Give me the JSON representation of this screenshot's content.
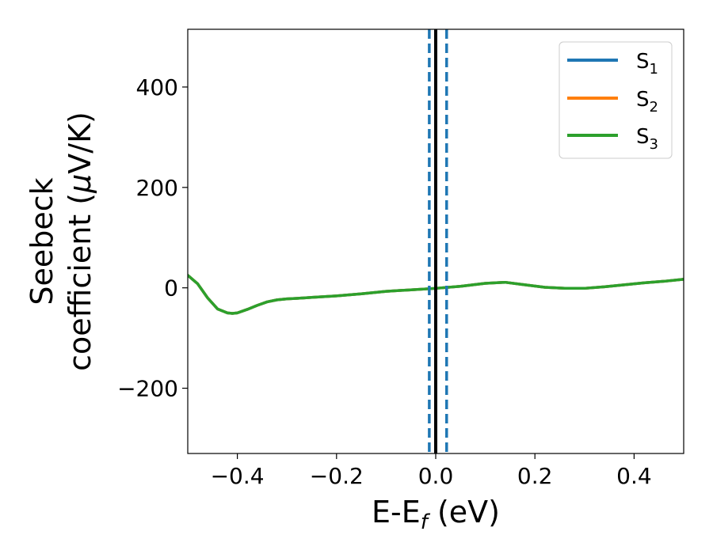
{
  "chart_data": {
    "type": "line",
    "xlabel": {
      "main": "E-E",
      "sub": "f",
      "unit": " (eV)"
    },
    "ylabel": {
      "line1": "Seebeck",
      "line2_prefix": "coefficient  (",
      "mu": "μ",
      "line2_suffix": "V/K)"
    },
    "xlim": [
      -0.5,
      0.5
    ],
    "ylim": [
      -330,
      515
    ],
    "xticks": [
      -0.4,
      -0.2,
      0.0,
      0.2,
      0.4
    ],
    "xtick_labels": [
      "−0.4",
      "−0.2",
      "0.0",
      "0.2",
      "0.4"
    ],
    "yticks": [
      -200,
      0,
      200,
      400
    ],
    "ytick_labels": [
      "−200",
      "0",
      "200",
      "400"
    ],
    "grid": false,
    "legend_position": "top-right",
    "series": [
      {
        "name": "S",
        "sub": "1",
        "color": "#1f77b4",
        "x": [
          -0.5,
          -0.48,
          -0.46,
          -0.44,
          -0.42,
          -0.41,
          -0.4,
          -0.38,
          -0.36,
          -0.34,
          -0.32,
          -0.3,
          -0.28,
          -0.25,
          -0.2,
          -0.15,
          -0.1,
          -0.05,
          0.0,
          0.05,
          0.1,
          0.14,
          0.18,
          0.22,
          0.26,
          0.3,
          0.34,
          0.38,
          0.42,
          0.46,
          0.5
        ],
        "y": [
          25,
          8,
          -20,
          -42,
          -50,
          -51,
          -50,
          -43,
          -35,
          -28,
          -24,
          -22,
          -21,
          -19,
          -16,
          -12,
          -7,
          -4,
          -1,
          3,
          9,
          11,
          6,
          1,
          -1,
          -1,
          2,
          6,
          10,
          13,
          17
        ]
      },
      {
        "name": "S",
        "sub": "2",
        "color": "#ff7f0e",
        "x": [
          -0.5,
          -0.48,
          -0.46,
          -0.44,
          -0.42,
          -0.41,
          -0.4,
          -0.38,
          -0.36,
          -0.34,
          -0.32,
          -0.3,
          -0.28,
          -0.25,
          -0.2,
          -0.15,
          -0.1,
          -0.05,
          0.0,
          0.05,
          0.1,
          0.14,
          0.18,
          0.22,
          0.26,
          0.3,
          0.34,
          0.38,
          0.42,
          0.46,
          0.5
        ],
        "y": [
          25,
          8,
          -20,
          -42,
          -50,
          -51,
          -50,
          -43,
          -35,
          -28,
          -24,
          -22,
          -21,
          -19,
          -16,
          -12,
          -7,
          -4,
          -1,
          3,
          9,
          11,
          6,
          1,
          -1,
          -1,
          2,
          6,
          10,
          13,
          17
        ]
      },
      {
        "name": "S",
        "sub": "3",
        "color": "#2ca02c",
        "x": [
          -0.5,
          -0.48,
          -0.46,
          -0.44,
          -0.42,
          -0.41,
          -0.4,
          -0.38,
          -0.36,
          -0.34,
          -0.32,
          -0.3,
          -0.28,
          -0.25,
          -0.2,
          -0.15,
          -0.1,
          -0.05,
          0.0,
          0.05,
          0.1,
          0.14,
          0.18,
          0.22,
          0.26,
          0.3,
          0.34,
          0.38,
          0.42,
          0.46,
          0.5
        ],
        "y": [
          25,
          8,
          -20,
          -42,
          -50,
          -51,
          -50,
          -43,
          -35,
          -28,
          -24,
          -22,
          -21,
          -19,
          -16,
          -12,
          -7,
          -4,
          -1,
          3,
          9,
          11,
          6,
          1,
          -1,
          -1,
          2,
          6,
          10,
          13,
          17
        ]
      }
    ],
    "vlines": [
      {
        "x": 0.0,
        "color": "#000000",
        "style": "solid"
      },
      {
        "x": -0.013,
        "color": "#1f77b4",
        "style": "dashed"
      },
      {
        "x": 0.022,
        "color": "#1f77b4",
        "style": "dashed"
      }
    ]
  }
}
